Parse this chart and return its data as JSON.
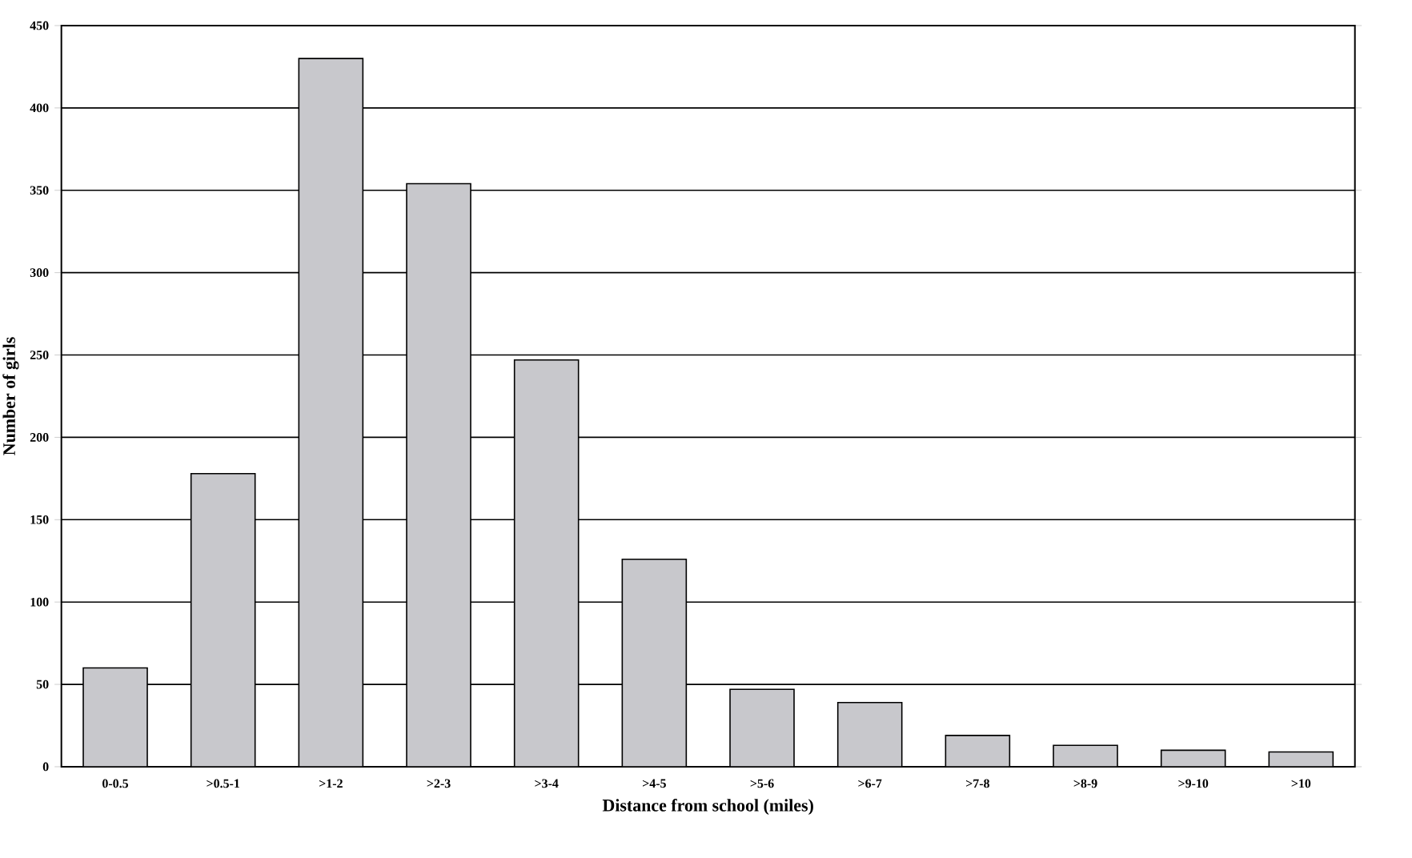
{
  "chart_data": {
    "type": "bar",
    "xlabel": "Distance from school (miles)",
    "ylabel": "Number of girls",
    "categories": [
      "0-0.5",
      ">0.5-1",
      ">1-2",
      ">2-3",
      ">3-4",
      ">4-5",
      ">5-6",
      ">6-7",
      ">7-8",
      ">8-9",
      ">9-10",
      ">10"
    ],
    "values": [
      60,
      178,
      430,
      354,
      247,
      126,
      47,
      39,
      19,
      13,
      10,
      9
    ],
    "color": "#c8c8cc",
    "ylim": [
      0,
      450
    ],
    "yticks": [
      0,
      50,
      100,
      150,
      200,
      250,
      300,
      350,
      400,
      450
    ],
    "grid": "y"
  }
}
